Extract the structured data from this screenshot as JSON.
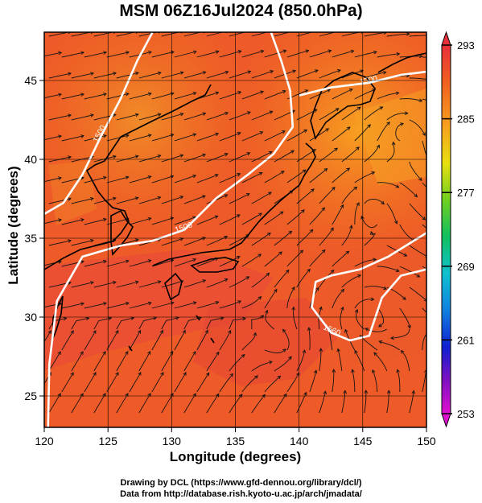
{
  "title": "MSM 06Z16Jul2024 (850.0hPa)",
  "xlabel": "Longitude (degrees)",
  "ylabel": "Latitude  (degrees)",
  "credits": [
    "Drawing by DCL (https://www.gfd-dennou.org/library/dcl/)",
    "Data from http://database.rish.kyoto-u.ac.jp/arch/jmadata/"
  ],
  "chart_data": {
    "type": "heatmap",
    "x_ticks": [
      120,
      125,
      130,
      135,
      140,
      145,
      150
    ],
    "y_ticks": [
      25,
      30,
      35,
      40,
      45
    ],
    "xlim": [
      120,
      150
    ],
    "ylim": [
      23,
      48
    ],
    "grid": true,
    "colorbar": {
      "ticks": [
        293,
        285,
        277,
        269,
        261,
        253
      ],
      "min": 253,
      "max": 293
    },
    "contours": [
      {
        "label": "1500",
        "points": [
          [
            120.0,
            36.5
          ],
          [
            121.5,
            37.2
          ],
          [
            123.0,
            39.0
          ],
          [
            124.5,
            41.5
          ],
          [
            126.0,
            43.8
          ],
          [
            127.3,
            46.2
          ],
          [
            128.5,
            48.0
          ]
        ]
      },
      {
        "label": "1500",
        "points": [
          [
            137.8,
            48.0
          ],
          [
            138.6,
            46.2
          ],
          [
            139.3,
            44.3
          ],
          [
            139.5,
            42.0
          ],
          [
            138.0,
            40.3
          ],
          [
            136.0,
            39.0
          ],
          [
            133.5,
            37.5
          ],
          [
            131.0,
            35.5
          ],
          [
            128.5,
            34.8
          ],
          [
            126.0,
            34.5
          ],
          [
            123.0,
            33.8
          ],
          [
            121.0,
            31.0
          ],
          [
            120.4,
            27.0
          ],
          [
            120.3,
            23.0
          ]
        ]
      },
      {
        "label": "1500",
        "points": [
          [
            140.0,
            44.0
          ],
          [
            142.5,
            44.5
          ],
          [
            145.5,
            44.8
          ],
          [
            148.0,
            45.3
          ],
          [
            150.0,
            45.5
          ]
        ]
      },
      {
        "label": "1560",
        "points": [
          [
            150.0,
            35.3
          ],
          [
            147.0,
            33.8
          ],
          [
            144.8,
            33.0
          ],
          [
            142.5,
            32.6
          ],
          [
            141.3,
            32.2
          ],
          [
            141.0,
            30.6
          ],
          [
            142.5,
            29.0
          ],
          [
            144.0,
            28.5
          ],
          [
            145.5,
            28.8
          ],
          [
            146.5,
            31.2
          ],
          [
            148.0,
            32.6
          ],
          [
            150.0,
            33.0
          ]
        ]
      }
    ]
  }
}
